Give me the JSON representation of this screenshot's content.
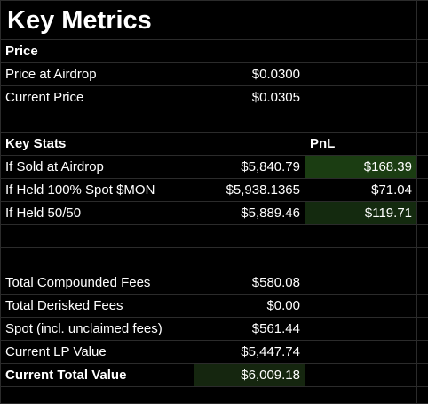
{
  "title": "Key Metrics",
  "price_section": {
    "header": "Price",
    "rows": [
      {
        "label": "Price at Airdrop",
        "value": "$0.0300"
      },
      {
        "label": "Current Price",
        "value": "$0.0305"
      }
    ]
  },
  "key_stats": {
    "header": "Key Stats",
    "pnl_header": "PnL",
    "rows": [
      {
        "label": "If Sold at Airdrop",
        "value": "$5,840.79",
        "pnl": "$168.39"
      },
      {
        "label": "If Held 100% Spot $MON",
        "value": "$5,938.1365",
        "pnl": "$71.04"
      },
      {
        "label": "If Held 50/50",
        "value": "$5,889.46",
        "pnl": "$119.71"
      }
    ]
  },
  "totals": {
    "rows": [
      {
        "label": "Total Compounded Fees",
        "value": "$580.08"
      },
      {
        "label": "Total Derisked Fees",
        "value": "$0.00"
      },
      {
        "label": "Spot (incl. unclaimed fees)",
        "value": "$561.44"
      },
      {
        "label": "Current LP Value",
        "value": "$5,447.74"
      },
      {
        "label": "Current Total Value",
        "value": "$6,009.18"
      }
    ]
  },
  "colors": {
    "background": "#000000",
    "gridline": "#2b2b2b",
    "text": "#ffffff",
    "highlight_strong": "#1b3d12",
    "highlight_weak": "#142a0f",
    "highlight_total": "#15260f"
  }
}
